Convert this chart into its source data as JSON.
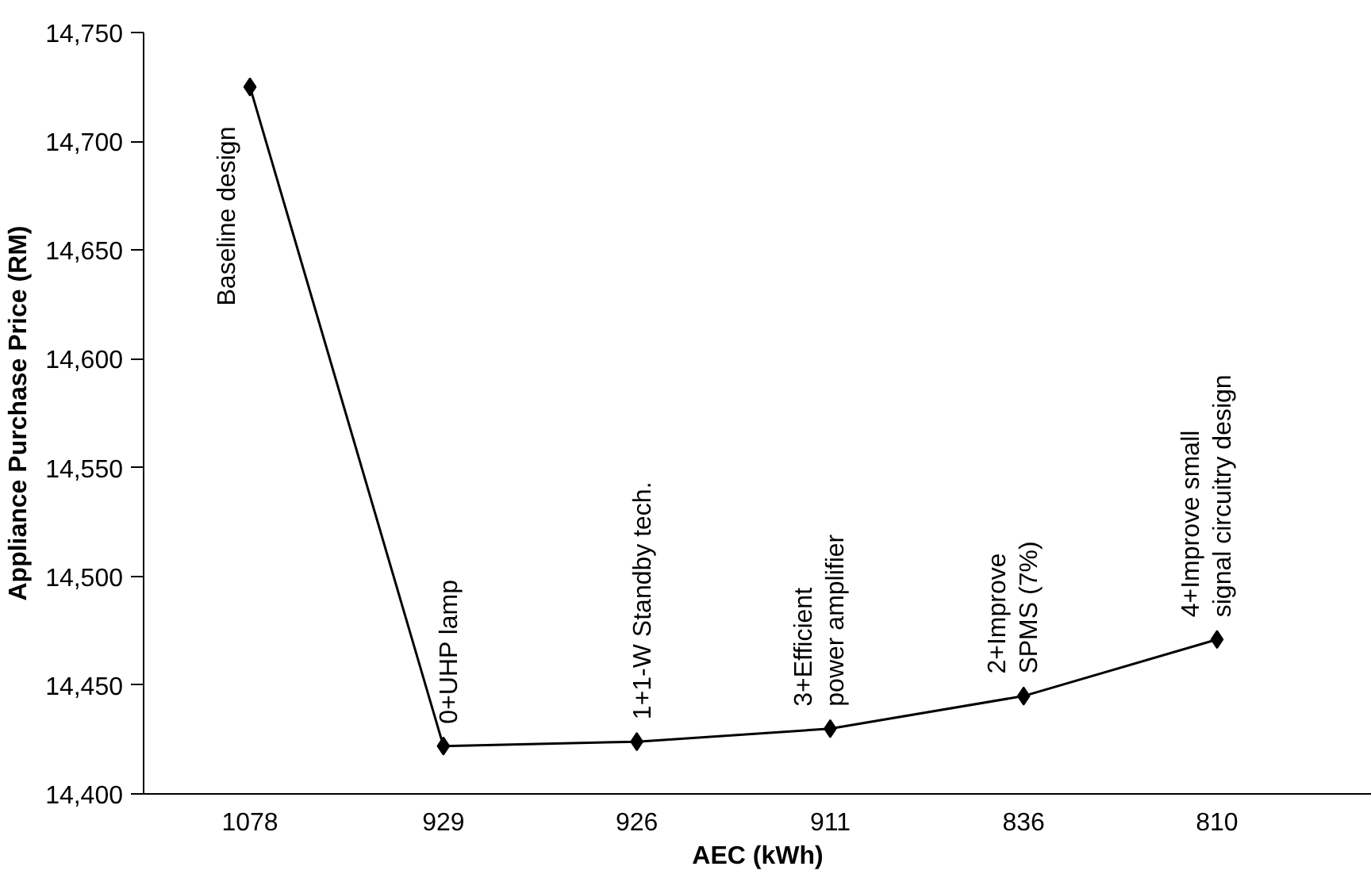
{
  "chart_data": {
    "type": "line",
    "xlabel": "AEC (kWh)",
    "ylabel": "Appliance Purchase Price (RM)",
    "categories": [
      "1078",
      "929",
      "926",
      "911",
      "836",
      "810"
    ],
    "series": [
      {
        "color": "#000000",
        "values": [
          14725,
          14422,
          14424,
          14430,
          14445,
          14471
        ]
      }
    ],
    "ylim": [
      14400,
      14750
    ],
    "yticks": [
      {
        "value": 14400,
        "label": "14,400"
      },
      {
        "value": 14450,
        "label": "14,450"
      },
      {
        "value": 14500,
        "label": "14,500"
      },
      {
        "value": 14550,
        "label": "14,550"
      },
      {
        "value": 14600,
        "label": "14,600"
      },
      {
        "value": 14650,
        "label": "14,650"
      },
      {
        "value": 14700,
        "label": "14,700"
      },
      {
        "value": 14750,
        "label": "14,750"
      }
    ],
    "marker": "diamond",
    "line_style": "solid",
    "annotations": [
      {
        "text": "Baseline design",
        "x": "1078",
        "y": 14725
      },
      {
        "text": "0+UHP lamp",
        "x": "929",
        "y": 14422
      },
      {
        "text": "1+1-W Standby tech.",
        "x": "926",
        "y": 14424
      },
      {
        "text": "3+Efficient\npower amplifier",
        "x": "911",
        "y": 14430
      },
      {
        "text": "2+Improve\nSPMS (7%)",
        "x": "836",
        "y": 14445
      },
      {
        "text": "4+Improve small\nsignal circuitry design",
        "x": "810",
        "y": 14471
      }
    ]
  }
}
